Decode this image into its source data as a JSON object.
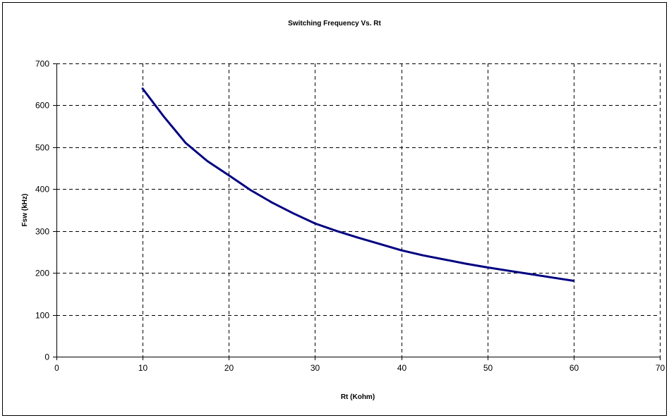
{
  "chart_data": {
    "type": "line",
    "title": "Switching Frequency Vs. Rt",
    "xlabel": "Rt (Kohm)",
    "ylabel": "Fsw (kHz)",
    "xlim": [
      0,
      70
    ],
    "ylim": [
      0,
      700
    ],
    "xticks": [
      0,
      10,
      20,
      30,
      40,
      50,
      60,
      70
    ],
    "yticks": [
      0,
      100,
      200,
      300,
      400,
      500,
      600,
      700
    ],
    "grid": true,
    "grid_style": "dashed",
    "series": [
      {
        "color": "#000080",
        "x": [
          10,
          12.5,
          15,
          17.5,
          20,
          22.5,
          25,
          27.5,
          30,
          32.5,
          35,
          37.5,
          40,
          42.5,
          45,
          47.5,
          50,
          52.5,
          55,
          57.5,
          60
        ],
        "y": [
          640,
          572,
          510,
          467,
          433,
          398,
          368,
          342,
          318,
          300,
          284,
          269,
          254,
          242,
          232,
          222,
          213,
          205,
          197,
          189,
          181
        ]
      }
    ]
  }
}
